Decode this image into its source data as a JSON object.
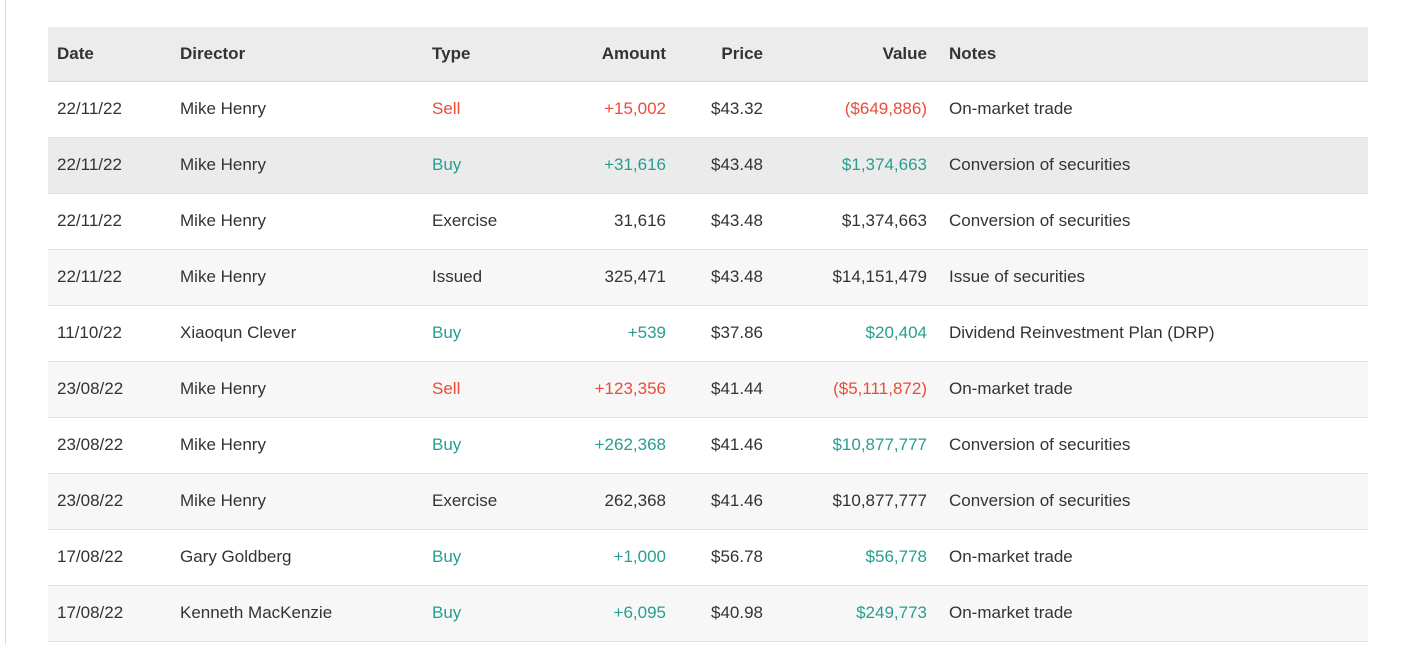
{
  "colors": {
    "positive": "#279D93",
    "negative": "#EC4B38",
    "text": "#333333",
    "header_bg": "#ECECEC",
    "stripe_bg": "#F7F7F7",
    "hover_bg": "#EBEBEB",
    "border": "#E2E2E2"
  },
  "table": {
    "columns": [
      {
        "id": "date",
        "label": "Date",
        "align": "left"
      },
      {
        "id": "director",
        "label": "Director",
        "align": "left"
      },
      {
        "id": "type",
        "label": "Type",
        "align": "left"
      },
      {
        "id": "amount",
        "label": "Amount",
        "align": "right"
      },
      {
        "id": "price",
        "label": "Price",
        "align": "right"
      },
      {
        "id": "value",
        "label": "Value",
        "align": "right"
      },
      {
        "id": "notes",
        "label": "Notes",
        "align": "left"
      }
    ],
    "rows": [
      {
        "date": "22/11/22",
        "director": "Mike Henry",
        "type": "Sell",
        "type_color": "negative",
        "amount": "+15,002",
        "amount_color": "negative",
        "price": "$43.32",
        "value": "($649,886)",
        "value_color": "negative",
        "notes": "On-market trade",
        "highlighted": false
      },
      {
        "date": "22/11/22",
        "director": "Mike Henry",
        "type": "Buy",
        "type_color": "positive",
        "amount": "+31,616",
        "amount_color": "positive",
        "price": "$43.48",
        "value": "$1,374,663",
        "value_color": "positive",
        "notes": "Conversion of securities",
        "highlighted": true
      },
      {
        "date": "22/11/22",
        "director": "Mike Henry",
        "type": "Exercise",
        "type_color": "default",
        "amount": "31,616",
        "amount_color": "default",
        "price": "$43.48",
        "value": "$1,374,663",
        "value_color": "default",
        "notes": "Conversion of securities",
        "highlighted": false
      },
      {
        "date": "22/11/22",
        "director": "Mike Henry",
        "type": "Issued",
        "type_color": "default",
        "amount": "325,471",
        "amount_color": "default",
        "price": "$43.48",
        "value": "$14,151,479",
        "value_color": "default",
        "notes": "Issue of securities",
        "highlighted": false
      },
      {
        "date": "11/10/22",
        "director": "Xiaoqun Clever",
        "type": "Buy",
        "type_color": "positive",
        "amount": "+539",
        "amount_color": "positive",
        "price": "$37.86",
        "value": "$20,404",
        "value_color": "positive",
        "notes": "Dividend Reinvestment Plan (DRP)",
        "highlighted": false
      },
      {
        "date": "23/08/22",
        "director": "Mike Henry",
        "type": "Sell",
        "type_color": "negative",
        "amount": "+123,356",
        "amount_color": "negative",
        "price": "$41.44",
        "value": "($5,111,872)",
        "value_color": "negative",
        "notes": "On-market trade",
        "highlighted": false
      },
      {
        "date": "23/08/22",
        "director": "Mike Henry",
        "type": "Buy",
        "type_color": "positive",
        "amount": "+262,368",
        "amount_color": "positive",
        "price": "$41.46",
        "value": "$10,877,777",
        "value_color": "positive",
        "notes": "Conversion of securities",
        "highlighted": false
      },
      {
        "date": "23/08/22",
        "director": "Mike Henry",
        "type": "Exercise",
        "type_color": "default",
        "amount": "262,368",
        "amount_color": "default",
        "price": "$41.46",
        "value": "$10,877,777",
        "value_color": "default",
        "notes": "Conversion of securities",
        "highlighted": false
      },
      {
        "date": "17/08/22",
        "director": "Gary Goldberg",
        "type": "Buy",
        "type_color": "positive",
        "amount": "+1,000",
        "amount_color": "positive",
        "price": "$56.78",
        "value": "$56,778",
        "value_color": "positive",
        "notes": "On-market trade",
        "highlighted": false
      },
      {
        "date": "17/08/22",
        "director": "Kenneth MacKenzie",
        "type": "Buy",
        "type_color": "positive",
        "amount": "+6,095",
        "amount_color": "positive",
        "price": "$40.98",
        "value": "$249,773",
        "value_color": "positive",
        "notes": "On-market trade",
        "highlighted": false
      }
    ]
  }
}
